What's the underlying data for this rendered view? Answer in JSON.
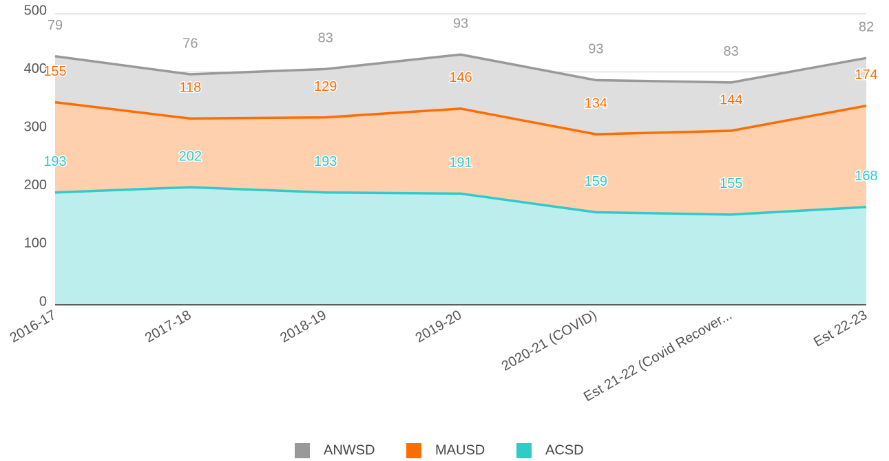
{
  "chart_data": {
    "type": "stacked_area",
    "categories": [
      "2016-17",
      "2017-18",
      "2018-19",
      "2019-20",
      "2020-21 (COVID)",
      "Est 21-22 (Covid Recover...",
      "Est 22-23"
    ],
    "series": [
      {
        "name": "ANWSD",
        "color": "#999999",
        "values": [
          79,
          76,
          83,
          93,
          93,
          83,
          82
        ]
      },
      {
        "name": "MAUSD",
        "color": "#ff6d01",
        "values": [
          155,
          118,
          129,
          146,
          134,
          144,
          174
        ]
      },
      {
        "name": "ACSD",
        "color": "#2ecbc9",
        "values": [
          193,
          202,
          193,
          191,
          159,
          155,
          168
        ]
      }
    ],
    "ylim": [
      0,
      500
    ],
    "yticks": [
      0,
      100,
      200,
      300,
      400,
      500
    ],
    "grid": true,
    "legend": "bottom"
  }
}
